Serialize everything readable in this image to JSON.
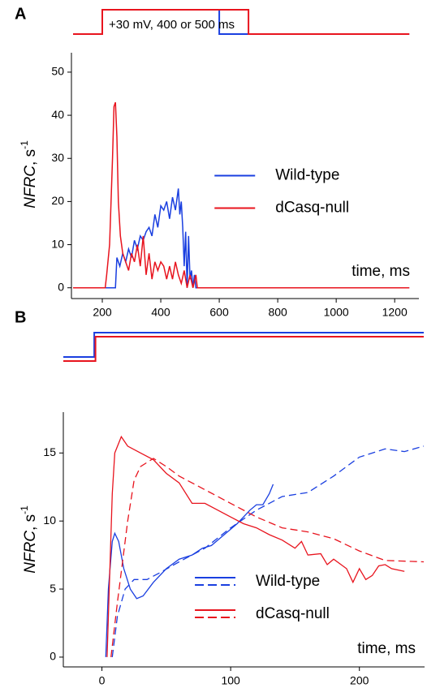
{
  "chart_data": [
    {
      "type": "line",
      "panel": "A",
      "annotation": "+30 mV, 400 or 500 ms",
      "xlabel": "time, ms",
      "ylabel": {
        "italic": "NFRC",
        "text": ", s",
        "sup": "-1"
      },
      "xlim": [
        100,
        1280
      ],
      "ylim": [
        -2.5,
        54.5
      ],
      "xticks": [
        200,
        400,
        600,
        800,
        1000,
        1200
      ],
      "yticks": [
        0,
        10,
        20,
        30,
        40,
        50
      ],
      "legend": "center right",
      "stimulus": [
        {
          "color": "#1a3fe0",
          "x": [
            100,
            200,
            200,
            600,
            600,
            1250
          ],
          "values": [
            0,
            0,
            1,
            1,
            0,
            0
          ]
        },
        {
          "color": "#e8141e",
          "x": [
            100,
            200,
            200,
            700,
            700,
            1250
          ],
          "values": [
            0,
            0,
            1,
            1,
            0,
            0
          ]
        }
      ],
      "series": [
        {
          "name": "Wild-type",
          "color": "#1a3fe0",
          "x": [
            100,
            245,
            250,
            260,
            270,
            280,
            290,
            300,
            310,
            320,
            330,
            340,
            350,
            360,
            370,
            380,
            390,
            400,
            410,
            420,
            430,
            440,
            450,
            460,
            465,
            470,
            475,
            480,
            485,
            490,
            495,
            500,
            505,
            510,
            515,
            520,
            1250
          ],
          "values": [
            0,
            0,
            7,
            5,
            8,
            6,
            9,
            7,
            11,
            9,
            12,
            11,
            13,
            14,
            12,
            17,
            14,
            19,
            18,
            20,
            16,
            21,
            18,
            23,
            17,
            20,
            14,
            5,
            13,
            0,
            12,
            2,
            4,
            0,
            3,
            0,
            0
          ]
        },
        {
          "name": "dCasq-null",
          "color": "#e8141e",
          "x": [
            100,
            210,
            215,
            225,
            235,
            240,
            245,
            250,
            255,
            262,
            270,
            280,
            290,
            300,
            310,
            320,
            330,
            340,
            350,
            360,
            370,
            380,
            390,
            400,
            410,
            420,
            430,
            440,
            450,
            460,
            470,
            480,
            490,
            500,
            510,
            520,
            525,
            1250
          ],
          "values": [
            0,
            0,
            3,
            10,
            30,
            42,
            43,
            35,
            20,
            12,
            8,
            6,
            4,
            8,
            6,
            10,
            5,
            12,
            3,
            8,
            2,
            6,
            4,
            6,
            5,
            2,
            5,
            2,
            6,
            3,
            1,
            4,
            0,
            3,
            0,
            3,
            0,
            0
          ]
        }
      ]
    },
    {
      "type": "line",
      "panel": "B",
      "xlabel": "time, ms",
      "ylabel": {
        "italic": "NFRC",
        "text": ", s",
        "sup": "-1"
      },
      "xlim": [
        -30,
        250
      ],
      "ylim": [
        -0.6,
        18
      ],
      "xticks": [
        0,
        100,
        200
      ],
      "yticks": [
        0,
        5,
        10,
        15
      ],
      "legend": "lower right",
      "stimulus": [
        {
          "color": "#1a3fe0",
          "x": [
            -30,
            -6,
            -6,
            250
          ],
          "values": [
            0,
            0,
            1,
            1
          ]
        },
        {
          "color": "#e8141e",
          "x": [
            -30,
            -5,
            -5,
            250
          ],
          "values": [
            0,
            0,
            1,
            1
          ]
        }
      ],
      "series": [
        {
          "name": "Wild-type",
          "color": "#1a3fe0",
          "lines": [
            {
              "dashed": false,
              "x": [
                3,
                5,
                8,
                10,
                13,
                17,
                22,
                27,
                32,
                40,
                50,
                60,
                70,
                78,
                85,
                95,
                105,
                115,
                120,
                125,
                130,
                133
              ],
              "values": [
                0,
                5,
                8.5,
                9.1,
                8.5,
                6.5,
                5,
                4.3,
                4.5,
                5.5,
                6.5,
                7.2,
                7.5,
                8,
                8.2,
                9,
                9.8,
                10.8,
                11.2,
                11.2,
                12,
                12.7
              ]
            },
            {
              "dashed": true,
              "x": [
                8,
                12,
                18,
                25,
                35,
                45,
                60,
                80,
                100,
                120,
                140,
                160,
                180,
                200,
                220,
                235,
                250
              ],
              "values": [
                0,
                3,
                5,
                5.7,
                5.7,
                6.2,
                7,
                8,
                9.5,
                10.8,
                11.8,
                12.1,
                13.3,
                14.7,
                15.3,
                15.1,
                15.5
              ]
            }
          ]
        },
        {
          "name": "dCasq-null",
          "color": "#e8141e",
          "lines": [
            {
              "dashed": false,
              "x": [
                4,
                6,
                8,
                10,
                15,
                20,
                30,
                40,
                50,
                60,
                70,
                80,
                90,
                100,
                110,
                120,
                130,
                140,
                150,
                155,
                160,
                170,
                175,
                180,
                190,
                195,
                200,
                205,
                210,
                215,
                220,
                225,
                235
              ],
              "values": [
                0,
                6,
                12,
                15,
                16.2,
                15.5,
                15,
                14.5,
                13.5,
                12.8,
                11.3,
                11.3,
                10.8,
                10.3,
                9.8,
                9.5,
                9,
                8.6,
                8,
                8.5,
                7.5,
                7.6,
                6.8,
                7.2,
                6.5,
                5.5,
                6.5,
                5.7,
                6,
                6.7,
                6.8,
                6.5,
                6.3
              ]
            },
            {
              "dashed": true,
              "x": [
                7,
                12,
                20,
                25,
                30,
                40,
                50,
                60,
                80,
                100,
                120,
                140,
                160,
                180,
                200,
                220,
                250
              ],
              "values": [
                0,
                4,
                10,
                13,
                14,
                14.6,
                14,
                13.3,
                12.3,
                11.3,
                10.3,
                9.5,
                9.2,
                8.7,
                7.8,
                7.1,
                7
              ]
            }
          ]
        }
      ]
    }
  ]
}
